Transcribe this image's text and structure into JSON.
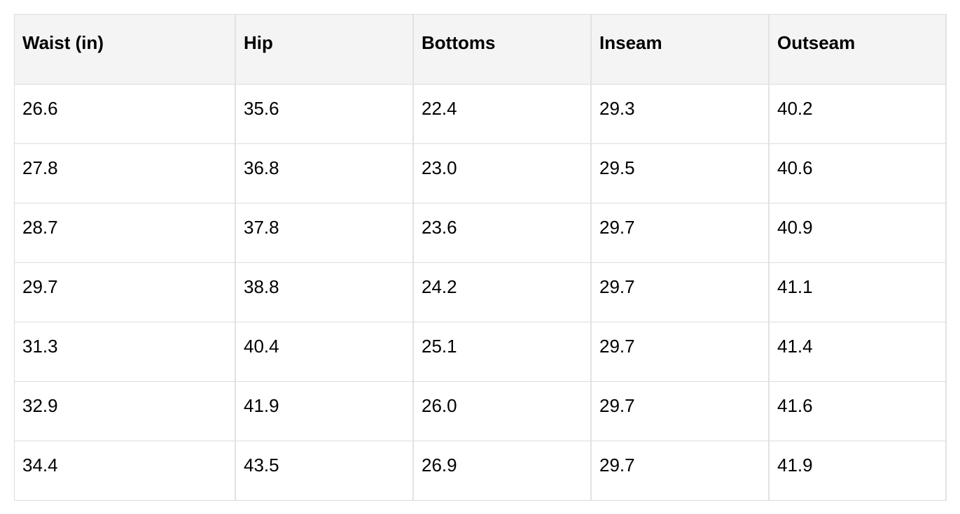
{
  "table": {
    "headers": [
      "Waist (in)",
      "Hip",
      "Bottoms",
      "Inseam",
      "Outseam"
    ],
    "rows": [
      [
        "26.6",
        "35.6",
        "22.4",
        "29.3",
        "40.2"
      ],
      [
        "27.8",
        "36.8",
        "23.0",
        "29.5",
        "40.6"
      ],
      [
        "28.7",
        "37.8",
        "23.6",
        "29.7",
        "40.9"
      ],
      [
        "29.7",
        "38.8",
        "24.2",
        "29.7",
        "41.1"
      ],
      [
        "31.3",
        "40.4",
        "25.1",
        "29.7",
        "41.4"
      ],
      [
        "32.9",
        "41.9",
        "26.0",
        "29.7",
        "41.6"
      ],
      [
        "34.4",
        "43.5",
        "26.9",
        "29.7",
        "41.9"
      ]
    ]
  }
}
